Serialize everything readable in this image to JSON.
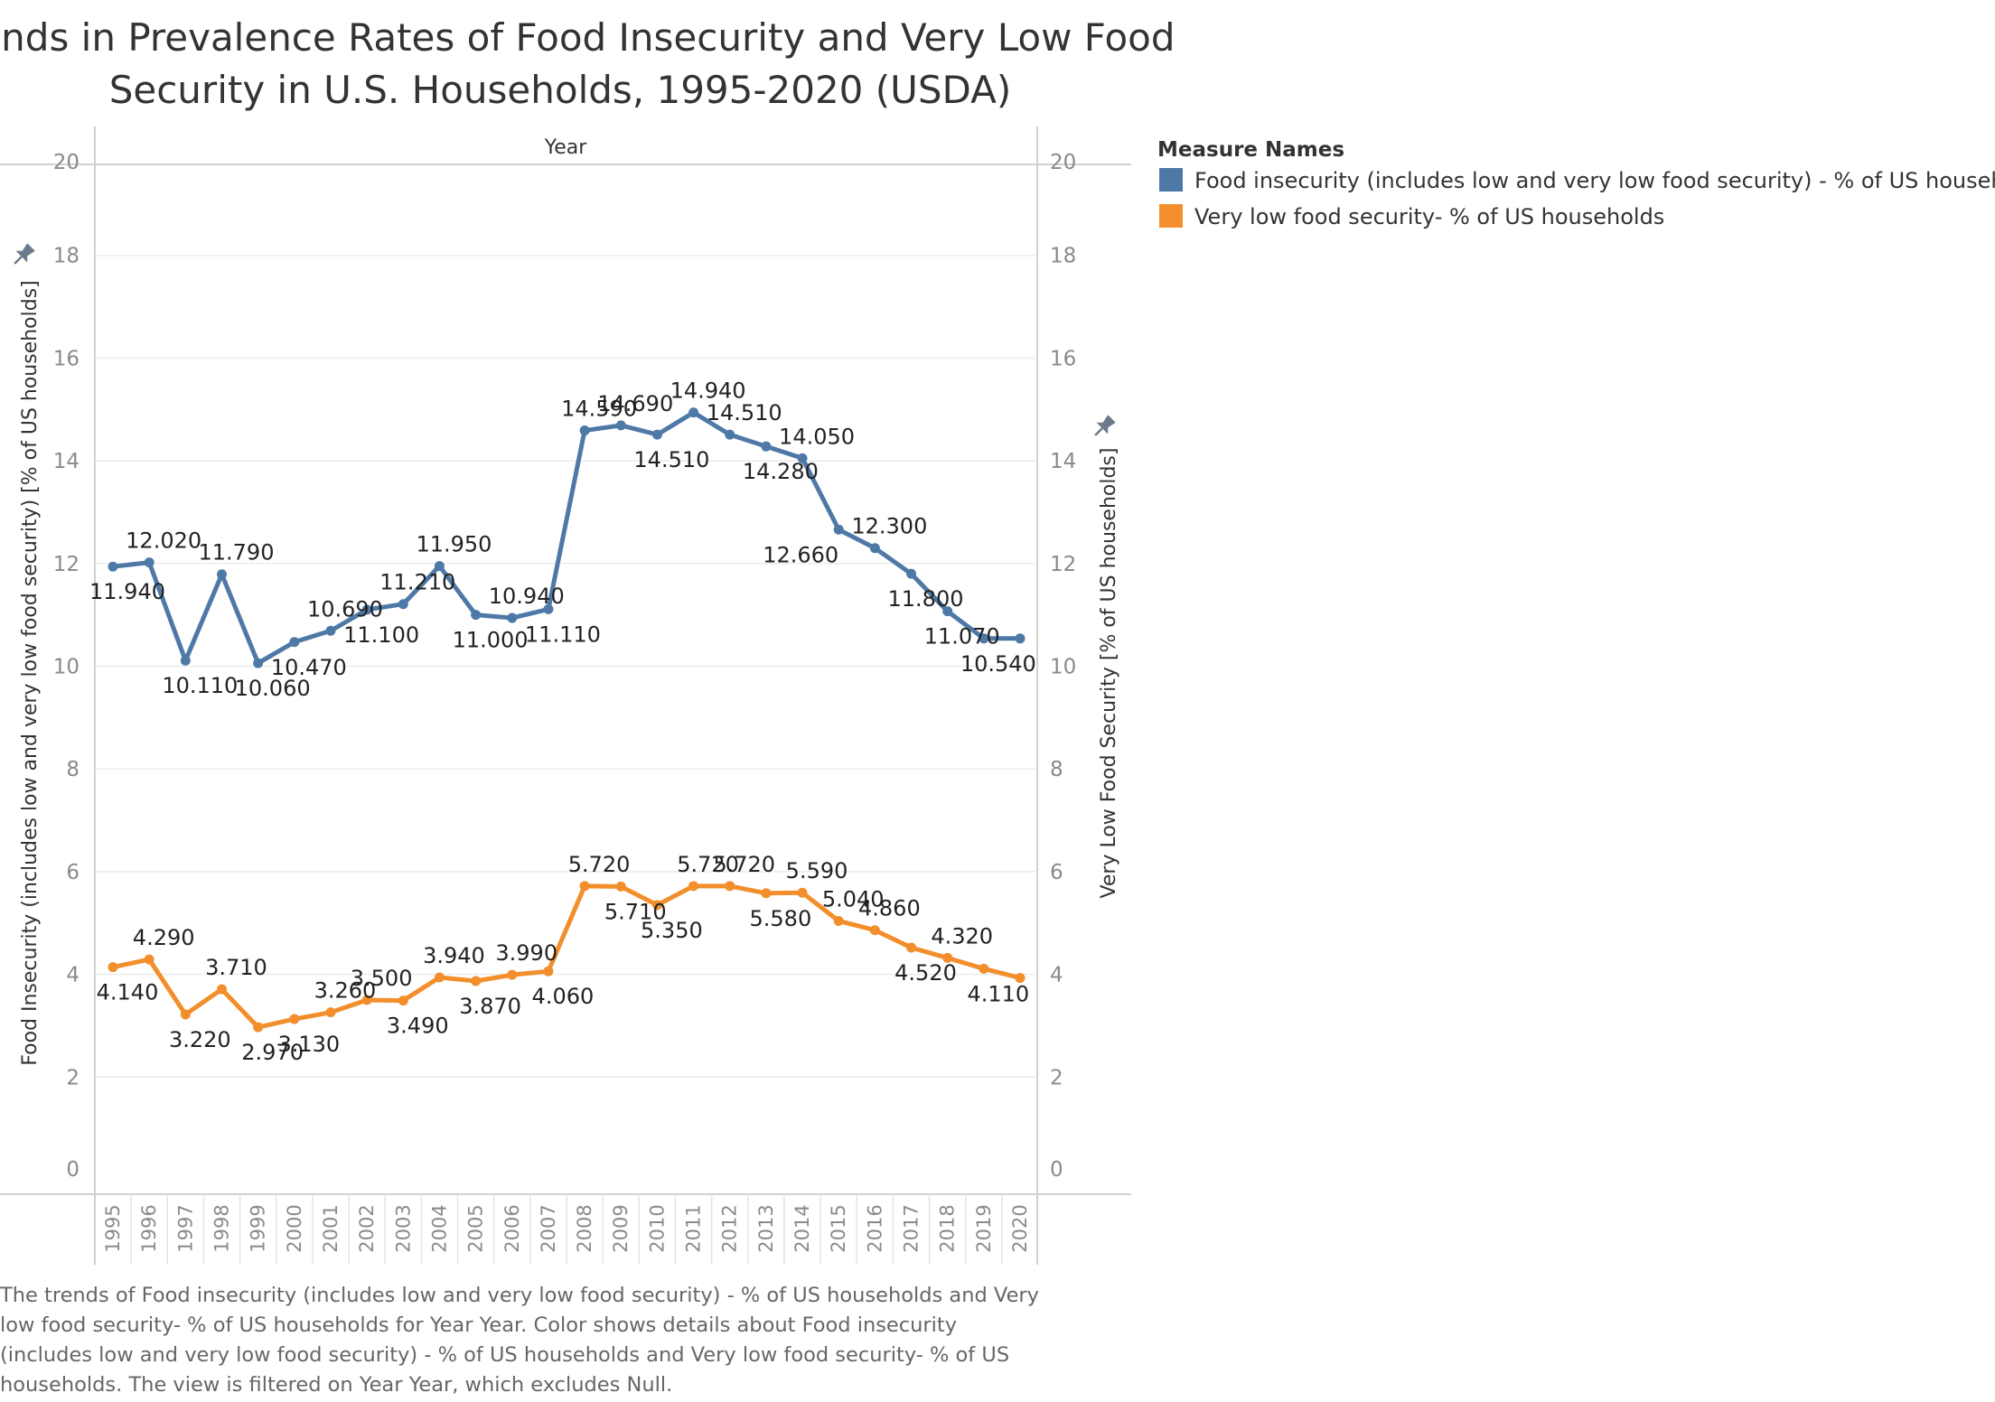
{
  "title_lines": [
    "Trends in Prevalence Rates of Food Insecurity and Very Low Food",
    "Security in U.S. Households, 1995-2020 (USDA)"
  ],
  "chart_data": {
    "type": "line",
    "title": "Trends in Prevalence Rates of Food Insecurity and Very Low Food Security in U.S. Households, 1995-2020 (USDA)",
    "column_header": "Year",
    "x": [
      "1995",
      "1996",
      "1997",
      "1998",
      "1999",
      "2000",
      "2001",
      "2002",
      "2003",
      "2004",
      "2005",
      "2006",
      "2007",
      "2008",
      "2009",
      "2010",
      "2011",
      "2012",
      "2013",
      "2014",
      "2015",
      "2016",
      "2017",
      "2018",
      "2019",
      "2020"
    ],
    "ylabel_left": "Food Insecurity  (includes low and very low food security) [% of US households]",
    "ylabel_right": "Very Low Food Security [% of US households]",
    "ylim": [
      0,
      20
    ],
    "yticks": [
      "0",
      "2",
      "4",
      "6",
      "8",
      "10",
      "12",
      "14",
      "16",
      "18",
      "20"
    ],
    "grid": true,
    "legend_placement": "right",
    "series": [
      {
        "name": "Food insecurity  (includes low and very low food security) - % of US households",
        "color": "#4e79a7",
        "values": [
          11.94,
          12.02,
          10.11,
          11.79,
          10.06,
          10.47,
          10.69,
          11.1,
          11.21,
          11.95,
          11.0,
          10.94,
          11.11,
          14.59,
          14.69,
          14.51,
          14.94,
          14.51,
          14.28,
          14.05,
          12.66,
          12.3,
          11.8,
          11.07,
          10.54,
          10.54
        ],
        "labels": [
          "11.940",
          "12.020",
          "10.110",
          "11.790",
          "10.060",
          "10.470",
          "10.690",
          "11.100",
          "11.210",
          "11.950",
          "11.000",
          "10.940",
          "11.110",
          "14.590",
          "14.690",
          "14.510",
          "14.940",
          "14.510",
          "14.280",
          "14.050",
          "12.660",
          "12.300",
          "11.800",
          "11.070",
          "10.540",
          ""
        ]
      },
      {
        "name": "Very low food security- % of US households",
        "color": "#f28e2b",
        "values": [
          4.14,
          4.29,
          3.22,
          3.71,
          2.97,
          3.13,
          3.26,
          3.5,
          3.49,
          3.94,
          3.87,
          3.99,
          4.06,
          5.72,
          5.71,
          5.35,
          5.72,
          5.72,
          5.58,
          5.59,
          5.04,
          4.86,
          4.52,
          4.32,
          4.11,
          3.93
        ],
        "labels": [
          "4.140",
          "4.290",
          "3.220",
          "3.710",
          "2.970",
          "3.130",
          "3.260",
          "3.500",
          "3.490",
          "3.940",
          "3.870",
          "3.990",
          "4.060",
          "5.720",
          "5.710",
          "5.350",
          "5.720",
          "5.720",
          "5.580",
          "5.590",
          "5.040",
          "4.860",
          "4.520",
          "4.320",
          "4.110",
          ""
        ]
      }
    ]
  },
  "legend": {
    "title": "Measure Names",
    "items": [
      {
        "label": "Food insecurity  (includes low and very low food security) - % of US households",
        "color": "#4e79a7"
      },
      {
        "label": "Very low food security- % of US households",
        "color": "#f28e2b"
      }
    ]
  },
  "caption": "The trends of Food insecurity  (includes low and very low food security) - % of US households and Very low food security- % of US households for Year Year.  Color shows details about Food insecurity  (includes low and very low food security) - % of US households and Very low food security- % of US households. The view is filtered on Year Year, which excludes Null.",
  "icons": {
    "left_axis_pin": "pin-icon",
    "right_axis_pin": "pin-icon"
  }
}
